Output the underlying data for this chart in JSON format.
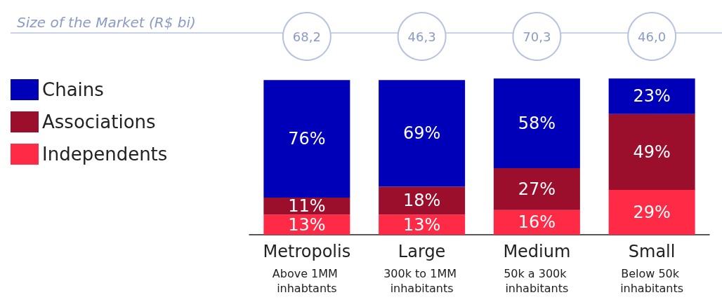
{
  "chart_data": {
    "type": "bar",
    "stacked": true,
    "legend": "left",
    "categories": [
      "Metropolis",
      "Large",
      "Medium",
      "Small"
    ],
    "series": [
      {
        "name": "Independents",
        "color": "#ff2a45",
        "values": [
          13,
          13,
          16,
          29
        ],
        "value_labels": [
          "13%",
          "13%",
          "16%",
          "29%"
        ]
      },
      {
        "name": "Associations",
        "color": "#9b0e2c",
        "values": [
          11,
          18,
          27,
          49
        ],
        "value_labels": [
          "11%",
          "18%",
          "27%",
          "49%"
        ]
      },
      {
        "name": "Chains",
        "color": "#0000b8",
        "values": [
          76,
          69,
          58,
          23
        ],
        "value_labels": [
          "76%",
          "69%",
          "58%",
          "23%"
        ]
      }
    ],
    "annotations": [
      "Size of the Market (R$ bi)",
      "68,2",
      "46,3",
      "70,3",
      "46,0",
      "Above 1MM inhabtants",
      "300k to 1MM inhabitants",
      "50k a 300k inhabitants",
      "Below 50k inhabitants"
    ]
  }
}
